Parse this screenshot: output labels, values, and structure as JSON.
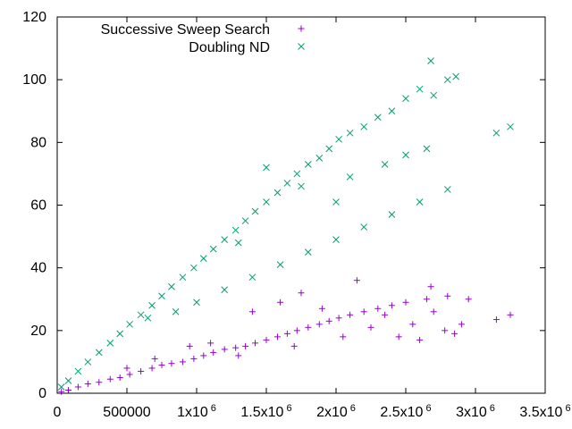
{
  "chart_data": {
    "type": "scatter",
    "xlim": [
      0,
      3500000
    ],
    "ylim": [
      0,
      120
    ],
    "grid": false,
    "legend_position": "top-left",
    "x_ticks": [
      {
        "value": 0,
        "base": "0",
        "exp": ""
      },
      {
        "value": 500000,
        "base": "500000",
        "exp": ""
      },
      {
        "value": 1000000,
        "base": "1x10",
        "exp": "6"
      },
      {
        "value": 1500000,
        "base": "1.5x10",
        "exp": "6"
      },
      {
        "value": 2000000,
        "base": "2x10",
        "exp": "6"
      },
      {
        "value": 2500000,
        "base": "2.5x10",
        "exp": "6"
      },
      {
        "value": 3000000,
        "base": "3x10",
        "exp": "6"
      },
      {
        "value": 3500000,
        "base": "3.5x10",
        "exp": "6"
      }
    ],
    "y_ticks": [
      {
        "value": 0,
        "label": "0"
      },
      {
        "value": 20,
        "label": "20"
      },
      {
        "value": 40,
        "label": "40"
      },
      {
        "value": 60,
        "label": "60"
      },
      {
        "value": 80,
        "label": "80"
      },
      {
        "value": 100,
        "label": "100"
      },
      {
        "value": 120,
        "label": "120"
      }
    ],
    "series": [
      {
        "name": "Successive Sweep Search",
        "marker": "plus",
        "color": "#9400d3",
        "points": [
          [
            30000,
            0.5
          ],
          [
            80000,
            1
          ],
          [
            150000,
            2
          ],
          [
            220000,
            3
          ],
          [
            300000,
            3.5
          ],
          [
            380000,
            4.5
          ],
          [
            450000,
            5
          ],
          [
            520000,
            6
          ],
          [
            600000,
            7
          ],
          [
            680000,
            8
          ],
          [
            750000,
            9
          ],
          [
            820000,
            9.5
          ],
          [
            900000,
            10
          ],
          [
            980000,
            11
          ],
          [
            1050000,
            12
          ],
          [
            1120000,
            13
          ],
          [
            1200000,
            14
          ],
          [
            1280000,
            14.5
          ],
          [
            1350000,
            15
          ],
          [
            1420000,
            16
          ],
          [
            1500000,
            17
          ],
          [
            1580000,
            18
          ],
          [
            1650000,
            19
          ],
          [
            1720000,
            20
          ],
          [
            1800000,
            21
          ],
          [
            1880000,
            22
          ],
          [
            1950000,
            23
          ],
          [
            2020000,
            24
          ],
          [
            2100000,
            25
          ],
          [
            2200000,
            26
          ],
          [
            2300000,
            27
          ],
          [
            2400000,
            28
          ],
          [
            2500000,
            29
          ],
          [
            2650000,
            30
          ],
          [
            2800000,
            31
          ],
          [
            2950000,
            30
          ],
          [
            3150000,
            23.5
          ],
          [
            3250000,
            25
          ],
          [
            2680000,
            34
          ],
          [
            2150000,
            36
          ],
          [
            1400000,
            26
          ],
          [
            1600000,
            29
          ],
          [
            1750000,
            32
          ],
          [
            2250000,
            21
          ],
          [
            2450000,
            18
          ],
          [
            2600000,
            17
          ],
          [
            2780000,
            20
          ],
          [
            2850000,
            19
          ],
          [
            2900000,
            22
          ],
          [
            2700000,
            26
          ],
          [
            2350000,
            25
          ],
          [
            1900000,
            27
          ],
          [
            1100000,
            16
          ],
          [
            950000,
            15
          ],
          [
            700000,
            11
          ],
          [
            500000,
            8
          ],
          [
            1300000,
            12
          ],
          [
            1700000,
            15
          ],
          [
            2050000,
            18
          ],
          [
            2550000,
            22
          ]
        ]
      },
      {
        "name": "Doubling ND",
        "marker": "cross",
        "color": "#009e73",
        "points": [
          [
            30000,
            2
          ],
          [
            80000,
            4
          ],
          [
            150000,
            7
          ],
          [
            220000,
            10
          ],
          [
            300000,
            13
          ],
          [
            380000,
            16
          ],
          [
            450000,
            19
          ],
          [
            520000,
            22
          ],
          [
            600000,
            25
          ],
          [
            680000,
            28
          ],
          [
            750000,
            31
          ],
          [
            820000,
            34
          ],
          [
            900000,
            37
          ],
          [
            980000,
            40
          ],
          [
            1050000,
            43
          ],
          [
            1120000,
            46
          ],
          [
            1200000,
            49
          ],
          [
            1280000,
            52
          ],
          [
            1350000,
            55
          ],
          [
            1420000,
            58
          ],
          [
            1500000,
            61
          ],
          [
            1580000,
            64
          ],
          [
            1650000,
            67
          ],
          [
            1720000,
            70
          ],
          [
            1800000,
            73
          ],
          [
            1880000,
            75
          ],
          [
            1950000,
            78
          ],
          [
            2020000,
            81
          ],
          [
            2100000,
            83
          ],
          [
            2200000,
            85
          ],
          [
            2300000,
            88
          ],
          [
            2400000,
            90
          ],
          [
            2500000,
            94
          ],
          [
            2600000,
            97
          ],
          [
            2700000,
            95
          ],
          [
            2800000,
            100
          ],
          [
            2680000,
            106
          ],
          [
            2860000,
            101
          ],
          [
            3150000,
            83
          ],
          [
            3250000,
            85
          ],
          [
            1000000,
            29
          ],
          [
            1200000,
            33
          ],
          [
            1400000,
            37
          ],
          [
            1600000,
            41
          ],
          [
            1800000,
            45
          ],
          [
            2000000,
            49
          ],
          [
            2200000,
            53
          ],
          [
            2400000,
            57
          ],
          [
            2600000,
            61
          ],
          [
            2800000,
            65
          ],
          [
            1500000,
            72
          ],
          [
            1750000,
            66
          ],
          [
            2100000,
            69
          ],
          [
            2350000,
            73
          ],
          [
            1300000,
            48
          ],
          [
            850000,
            26
          ],
          [
            650000,
            24
          ],
          [
            2500000,
            76
          ],
          [
            2650000,
            78
          ],
          [
            2000000,
            61
          ]
        ]
      }
    ]
  }
}
